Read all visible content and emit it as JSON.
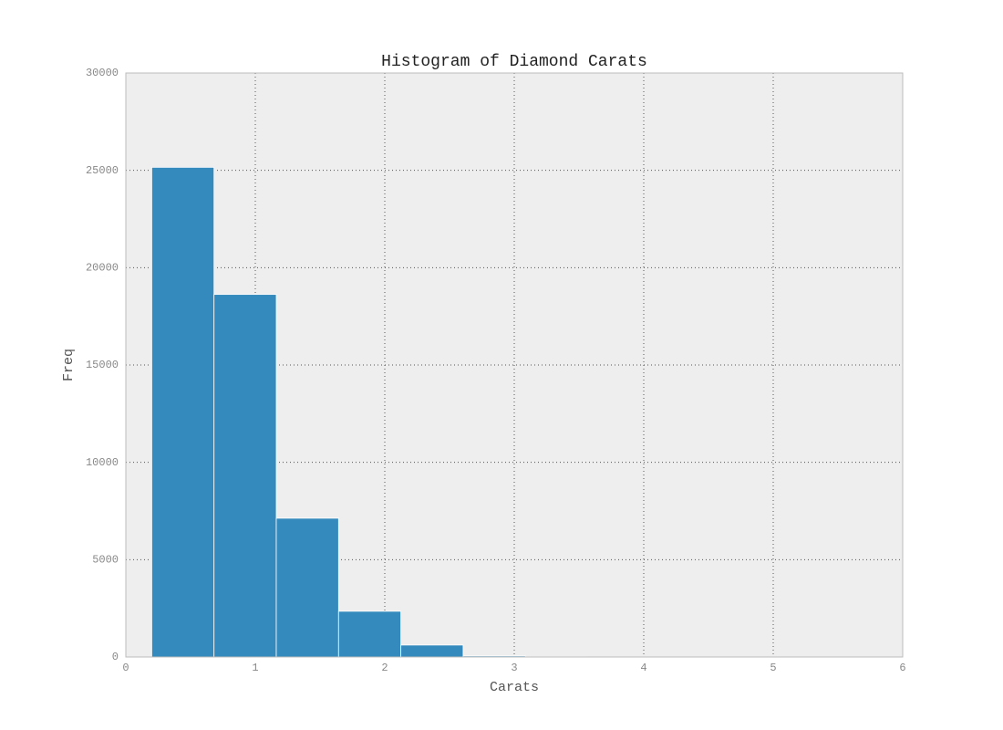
{
  "chart_data": {
    "type": "histogram",
    "title": "Histogram of Diamond Carats",
    "x_label": "Carats",
    "y_label": "Freq",
    "bins": [
      0.2,
      0.681,
      1.162,
      1.643,
      2.124,
      2.605,
      3.086,
      3.567,
      4.048,
      4.529,
      5.01
    ],
    "values": [
      25155,
      18626,
      7129,
      2349,
      614,
      54,
      11,
      5,
      0,
      1
    ],
    "color": "#348abd",
    "xlim": [
      0,
      6
    ],
    "xticks": [
      0,
      1,
      2,
      3,
      4,
      5,
      6
    ],
    "ylim": [
      0,
      30000
    ],
    "yticks": [
      0,
      5000,
      10000,
      15000,
      20000,
      25000,
      30000
    ],
    "grid": true
  }
}
